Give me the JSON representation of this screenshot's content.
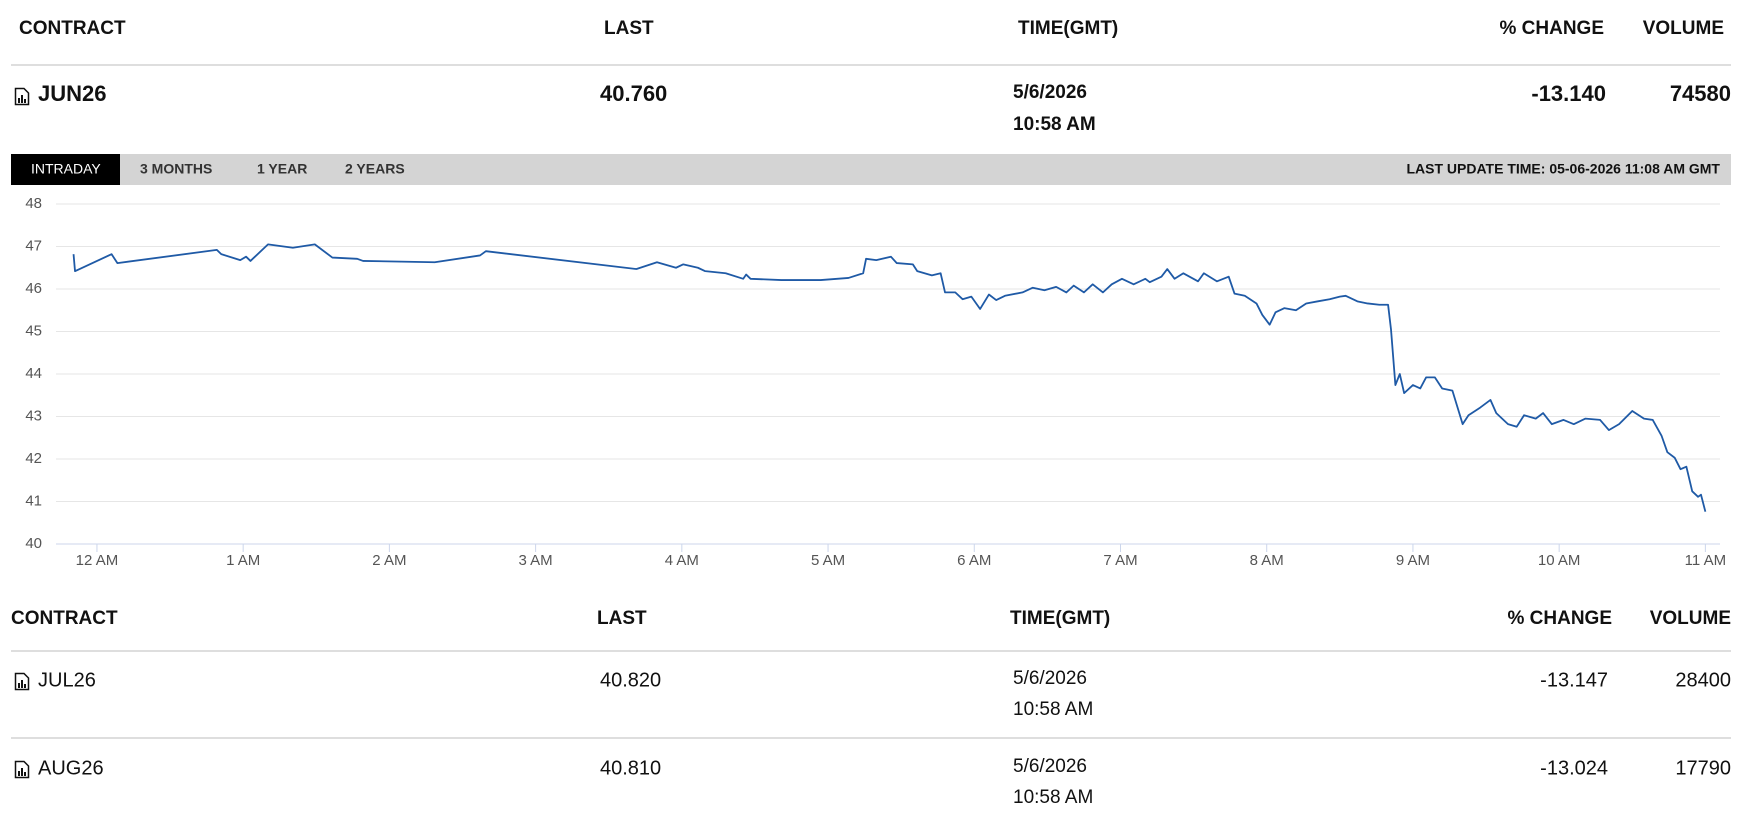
{
  "top_table": {
    "headers": [
      "CONTRACT",
      "LAST",
      "TIME(GMT)",
      "% CHANGE",
      "VOLUME"
    ],
    "row": {
      "contract": "JUN26",
      "last": "40.760",
      "date": "5/6/2026",
      "time": "10:58 AM",
      "change": "-13.140",
      "volume": "74580"
    }
  },
  "tabs": [
    "INTRADAY",
    "3 MONTHS",
    "1 YEAR",
    "2 YEARS"
  ],
  "last_update": "LAST UPDATE TIME: 05-06-2026 11:08 AM GMT",
  "chart_data": {
    "type": "line",
    "color": "#1f5aa6",
    "grid": true,
    "xlim": [
      -0.28,
      11.1
    ],
    "xticks": [
      {
        "value": 0,
        "label": "12 AM"
      },
      {
        "value": 1,
        "label": "1 AM"
      },
      {
        "value": 2,
        "label": "2 AM"
      },
      {
        "value": 3,
        "label": "3 AM"
      },
      {
        "value": 4,
        "label": "4 AM"
      },
      {
        "value": 5,
        "label": "5 AM"
      },
      {
        "value": 6,
        "label": "6 AM"
      },
      {
        "value": 7,
        "label": "7 AM"
      },
      {
        "value": 8,
        "label": "8 AM"
      },
      {
        "value": 9,
        "label": "9 AM"
      },
      {
        "value": 10,
        "label": "10 AM"
      },
      {
        "value": 11,
        "label": "11 AM"
      }
    ],
    "ylim": [
      40,
      48
    ],
    "yticks": [
      40,
      41,
      42,
      43,
      44,
      45,
      46,
      47,
      48
    ],
    "x": [
      -0.16,
      -0.15,
      0.1,
      0.14,
      0.82,
      0.85,
      0.98,
      1.02,
      1.05,
      1.17,
      1.34,
      1.49,
      1.61,
      1.78,
      1.82,
      2.31,
      2.62,
      2.66,
      3.69,
      3.83,
      3.96,
      4.01,
      4.11,
      4.16,
      4.3,
      4.42,
      4.44,
      4.47,
      4.68,
      4.95,
      5.14,
      5.24,
      5.26,
      5.33,
      5.43,
      5.47,
      5.58,
      5.61,
      5.71,
      5.77,
      5.8,
      5.87,
      5.92,
      5.98,
      6.04,
      6.1,
      6.15,
      6.21,
      6.33,
      6.4,
      6.48,
      6.56,
      6.63,
      6.68,
      6.75,
      6.81,
      6.88,
      6.94,
      7.01,
      7.09,
      7.17,
      7.2,
      7.28,
      7.32,
      7.37,
      7.43,
      7.53,
      7.57,
      7.66,
      7.74,
      7.78,
      7.85,
      7.93,
      7.97,
      8.02,
      8.06,
      8.12,
      8.2,
      8.27,
      8.35,
      8.43,
      8.5,
      8.54,
      8.62,
      8.69,
      8.77,
      8.83,
      8.85,
      8.88,
      8.91,
      8.94,
      9.0,
      9.05,
      9.09,
      9.15,
      9.2,
      9.27,
      9.34,
      9.38,
      9.46,
      9.53,
      9.57,
      9.65,
      9.71,
      9.76,
      9.84,
      9.89,
      9.95,
      10.03,
      10.1,
      10.18,
      10.28,
      10.34,
      10.41,
      10.5,
      10.58,
      10.64,
      10.7,
      10.74,
      10.79,
      10.83,
      10.87,
      10.91,
      10.95,
      10.97,
      11.0
    ],
    "values": [
      46.82,
      46.42,
      46.82,
      46.61,
      46.92,
      46.82,
      46.68,
      46.76,
      46.66,
      47.05,
      46.97,
      47.05,
      46.74,
      46.71,
      46.66,
      46.63,
      46.79,
      46.89,
      46.47,
      46.63,
      46.5,
      46.58,
      46.5,
      46.42,
      46.37,
      46.24,
      46.34,
      46.24,
      46.21,
      46.21,
      46.26,
      46.37,
      46.71,
      46.68,
      46.76,
      46.61,
      46.58,
      46.42,
      46.32,
      46.37,
      45.92,
      45.92,
      45.76,
      45.82,
      45.53,
      45.87,
      45.74,
      45.84,
      45.92,
      46.03,
      45.97,
      46.05,
      45.92,
      46.08,
      45.92,
      46.11,
      45.92,
      46.11,
      46.24,
      46.11,
      46.24,
      46.16,
      46.29,
      46.47,
      46.24,
      46.37,
      46.18,
      46.37,
      46.18,
      46.29,
      45.89,
      45.84,
      45.66,
      45.39,
      45.16,
      45.45,
      45.55,
      45.5,
      45.66,
      45.71,
      45.76,
      45.82,
      45.84,
      45.71,
      45.66,
      45.63,
      45.63,
      45.05,
      43.74,
      44.0,
      43.55,
      43.74,
      43.66,
      43.92,
      43.92,
      43.66,
      43.61,
      42.82,
      43.03,
      43.21,
      43.39,
      43.08,
      42.82,
      42.76,
      43.03,
      42.95,
      43.08,
      42.82,
      42.92,
      42.82,
      42.95,
      42.92,
      42.68,
      42.82,
      43.13,
      42.95,
      42.92,
      42.55,
      42.16,
      42.03,
      41.76,
      41.82,
      41.24,
      41.11,
      41.16,
      40.76
    ]
  },
  "bottom_table": {
    "headers": [
      "CONTRACT",
      "LAST",
      "TIME(GMT)",
      "% CHANGE",
      "VOLUME"
    ],
    "rows": [
      {
        "contract": "JUL26",
        "last": "40.820",
        "date": "5/6/2026",
        "time": "10:58 AM",
        "change": "-13.147",
        "volume": "28400"
      },
      {
        "contract": "AUG26",
        "last": "40.810",
        "date": "5/6/2026",
        "time": "10:58 AM",
        "change": "-13.024",
        "volume": "17790"
      }
    ]
  }
}
